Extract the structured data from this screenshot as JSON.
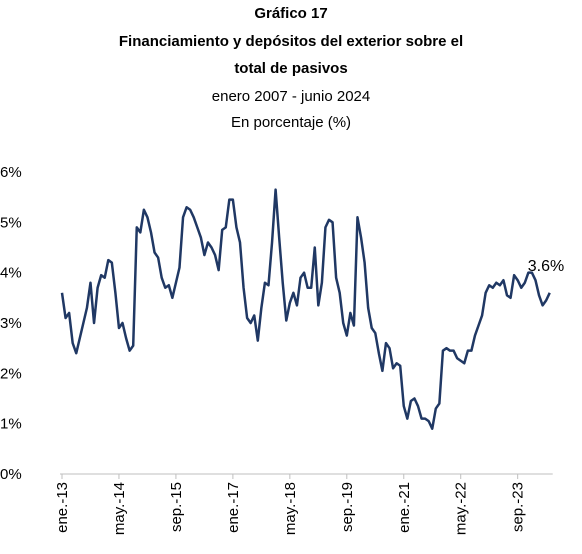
{
  "chart_data": {
    "type": "line",
    "title": [
      "Gráfico 17",
      "Financiamiento y depósitos del exterior sobre el",
      "total de pasivos"
    ],
    "subtitle": [
      "enero 2007 - junio 2024",
      "En porcentaje (%)"
    ],
    "annotation": "3.6%",
    "categories": [
      "ene.-13",
      null,
      null,
      null,
      null,
      null,
      null,
      null,
      null,
      null,
      null,
      null,
      null,
      null,
      null,
      null,
      "may.-14",
      null,
      null,
      null,
      null,
      null,
      null,
      null,
      null,
      null,
      null,
      null,
      null,
      null,
      null,
      null,
      "sep.-15",
      null,
      null,
      null,
      null,
      null,
      null,
      null,
      null,
      null,
      null,
      null,
      null,
      null,
      null,
      null,
      "ene.-17",
      null,
      null,
      null,
      null,
      null,
      null,
      null,
      null,
      null,
      null,
      null,
      null,
      null,
      null,
      null,
      "may.-18",
      null,
      null,
      null,
      null,
      null,
      null,
      null,
      null,
      null,
      null,
      null,
      null,
      null,
      null,
      null,
      "sep.-19",
      null,
      null,
      null,
      null,
      null,
      null,
      null,
      null,
      null,
      null,
      null,
      null,
      null,
      null,
      null,
      "ene.-21",
      null,
      null,
      null,
      null,
      null,
      null,
      null,
      null,
      null,
      null,
      null,
      null,
      null,
      null,
      null,
      "may.-22",
      null,
      null,
      null,
      null,
      null,
      null,
      null,
      null,
      null,
      null,
      null,
      null,
      null,
      null,
      null,
      "sep.-23",
      null,
      null,
      null,
      null,
      null,
      null,
      null,
      null,
      null
    ],
    "series": [
      {
        "color": "#203864",
        "values": [
          3.6,
          3.1,
          3.2,
          2.6,
          2.4,
          2.7,
          3.0,
          3.3,
          3.8,
          3.0,
          3.7,
          3.95,
          3.9,
          4.25,
          4.2,
          3.6,
          2.9,
          3.0,
          2.7,
          2.45,
          2.55,
          4.9,
          4.8,
          5.25,
          5.1,
          4.8,
          4.4,
          4.3,
          3.9,
          3.7,
          3.75,
          3.5,
          3.8,
          4.1,
          5.1,
          5.3,
          5.25,
          5.1,
          4.9,
          4.7,
          4.35,
          4.6,
          4.5,
          4.35,
          4.05,
          4.85,
          4.9,
          5.45,
          5.45,
          4.9,
          4.6,
          3.7,
          3.1,
          3.0,
          3.15,
          2.65,
          3.3,
          3.8,
          3.75,
          4.6,
          5.65,
          4.7,
          3.8,
          3.05,
          3.4,
          3.6,
          3.35,
          3.9,
          4.0,
          3.7,
          3.7,
          4.5,
          3.35,
          3.8,
          4.9,
          5.05,
          5.0,
          3.9,
          3.6,
          3.0,
          2.75,
          3.2,
          2.95,
          5.1,
          4.7,
          4.2,
          3.3,
          2.9,
          2.8,
          2.4,
          2.05,
          2.6,
          2.5,
          2.1,
          2.2,
          2.15,
          1.35,
          1.1,
          1.45,
          1.5,
          1.35,
          1.1,
          1.1,
          1.05,
          0.9,
          1.3,
          1.4,
          2.45,
          2.5,
          2.45,
          2.45,
          2.3,
          2.25,
          2.2,
          2.45,
          2.45,
          2.75,
          2.95,
          3.15,
          3.6,
          3.75,
          3.7,
          3.8,
          3.75,
          3.85,
          3.55,
          3.5,
          3.95,
          3.85,
          3.7,
          3.8,
          4.0,
          4.0,
          3.85,
          3.55,
          3.35,
          3.45,
          3.6
        ]
      }
    ],
    "ylim": [
      0,
      6
    ],
    "yticks": [
      {
        "value": 0,
        "label": "0%"
      },
      {
        "value": 1,
        "label": "1%"
      },
      {
        "value": 2,
        "label": "2%"
      },
      {
        "value": 3,
        "label": "3%"
      },
      {
        "value": 4,
        "label": "4%"
      },
      {
        "value": 5,
        "label": "5%"
      },
      {
        "value": 6,
        "label": "6%"
      }
    ],
    "grid": false
  }
}
